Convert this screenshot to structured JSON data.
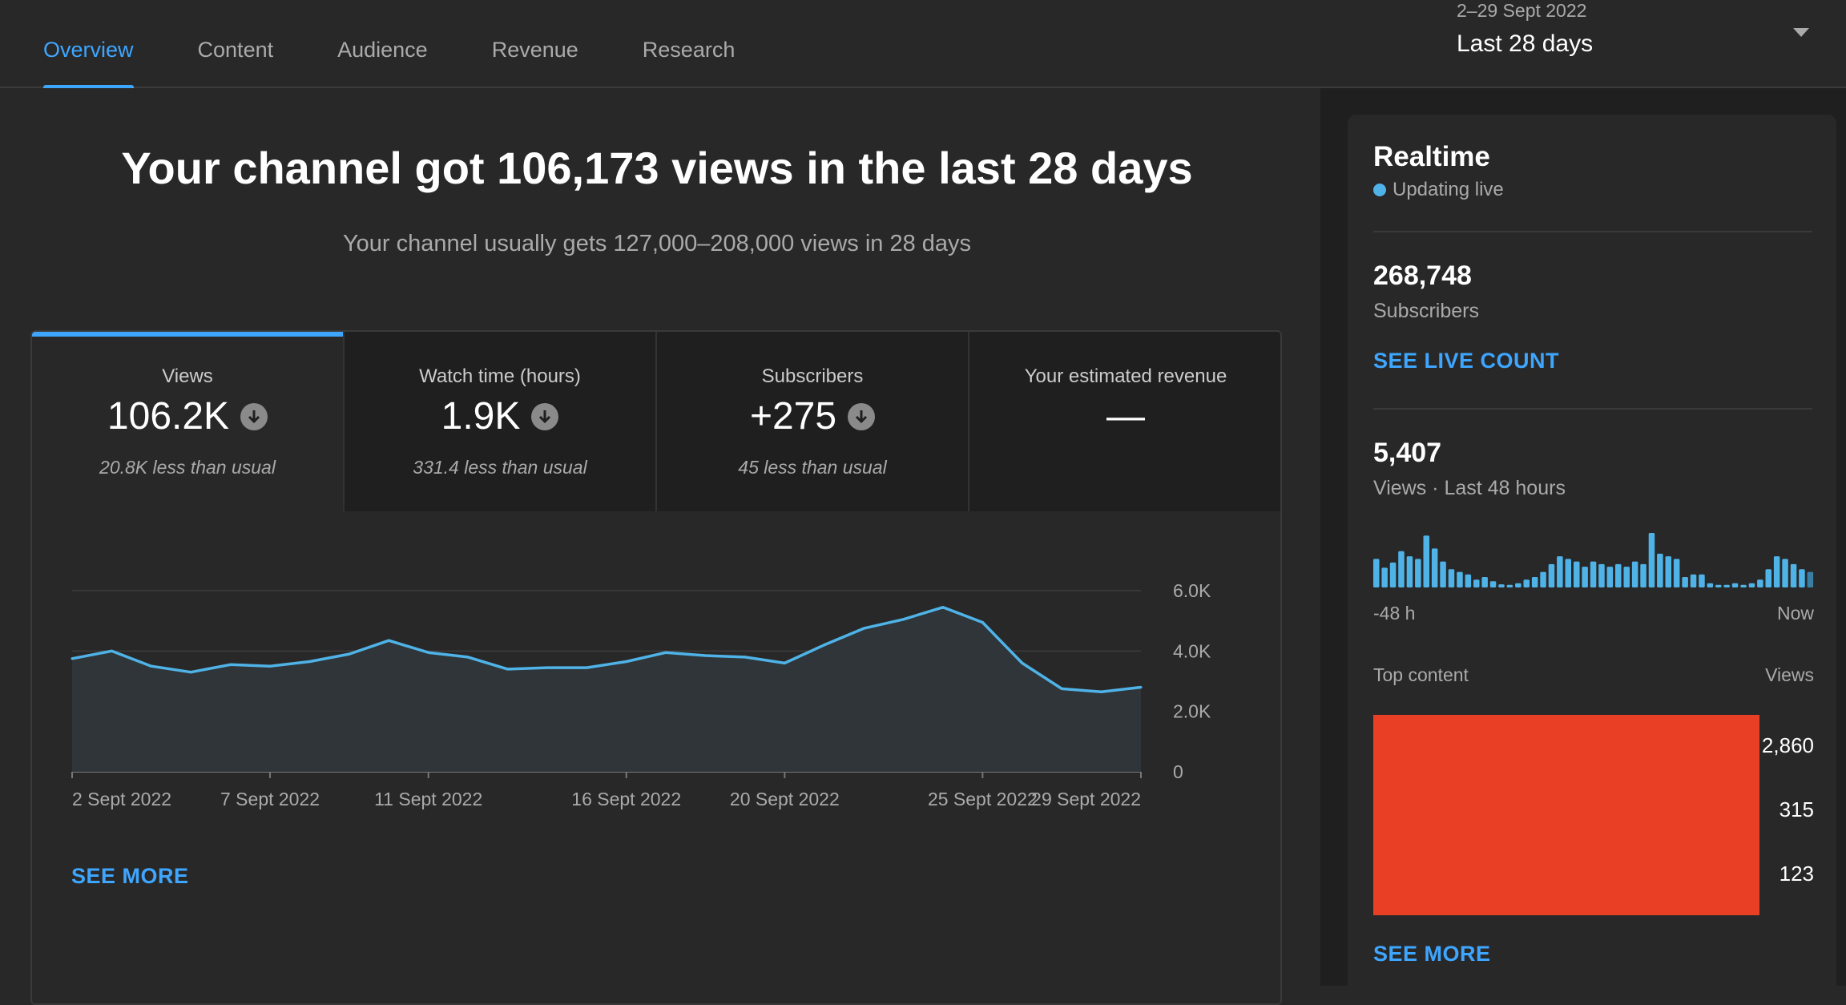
{
  "nav": {
    "tabs": [
      "Overview",
      "Content",
      "Audience",
      "Revenue",
      "Research"
    ],
    "active_tab": "Overview",
    "date_range": {
      "sub": "2–29 Sept 2022",
      "label": "Last 28 days"
    }
  },
  "summary": {
    "headline": "Your channel got 106,173 views in the last 28 days",
    "subline": "Your channel usually gets 127,000–208,000 views in 28 days"
  },
  "metrics": [
    {
      "label": "Views",
      "value": "106.2K",
      "note": "20.8K less than usual",
      "trend": "down",
      "active": true
    },
    {
      "label": "Watch time (hours)",
      "value": "1.9K",
      "note": "331.4 less than usual",
      "trend": "down",
      "active": false
    },
    {
      "label": "Subscribers",
      "value": "+275",
      "note": "45 less than usual",
      "trend": "down",
      "active": false
    },
    {
      "label": "Your estimated revenue",
      "value": "—",
      "note": "",
      "trend": "",
      "active": false
    }
  ],
  "see_more": "SEE MORE",
  "chart_data": {
    "type": "area",
    "x_tick_labels": [
      "2 Sept 2022",
      "7 Sept 2022",
      "11 Sept 2022",
      "16 Sept 2022",
      "20 Sept 2022",
      "25 Sept 2022",
      "29 Sept 2022"
    ],
    "x_tick_days": [
      2,
      7,
      11,
      16,
      20,
      25,
      29
    ],
    "y_tick_labels": [
      "0",
      "2.0K",
      "4.0K",
      "6.0K"
    ],
    "y_ticks": [
      0,
      2000,
      4000,
      6000
    ],
    "ylim": [
      0,
      6000
    ],
    "xlim": [
      2,
      29
    ],
    "line_color": "#4fb3e8",
    "series": [
      {
        "days": [
          2,
          3,
          4,
          5,
          6,
          7,
          8,
          9,
          10,
          11,
          12,
          13,
          14,
          15,
          16,
          17,
          18,
          19,
          20,
          21,
          22,
          23,
          24,
          25,
          26,
          27,
          28,
          29
        ],
        "values": [
          3750,
          4000,
          3500,
          3300,
          3550,
          3500,
          3650,
          3900,
          4350,
          3950,
          3800,
          3400,
          3450,
          3450,
          3650,
          3950,
          3850,
          3800,
          3600,
          4200,
          4750,
          5050,
          5450,
          4950,
          3600,
          2750,
          2650,
          2800
        ]
      }
    ]
  },
  "realtime": {
    "title": "Realtime",
    "live_label": "Updating live",
    "subscribers_value": "268,748",
    "subscribers_label": "Subscribers",
    "live_count_button": "SEE LIVE COUNT",
    "views_value": "5,407",
    "views_label": "Views · Last 48 hours",
    "axis_start": "-48 h",
    "axis_end": "Now",
    "bar_color": "#4fb3e8",
    "hourly_views": [
      55,
      38,
      48,
      70,
      60,
      55,
      100,
      75,
      50,
      35,
      30,
      25,
      15,
      20,
      12,
      6,
      5,
      8,
      15,
      20,
      30,
      45,
      60,
      55,
      50,
      40,
      50,
      45,
      40,
      45,
      40,
      50,
      45,
      105,
      65,
      60,
      55,
      20,
      25,
      25,
      8,
      5,
      5,
      8,
      5,
      8,
      15,
      35,
      60,
      55,
      45,
      35,
      30
    ],
    "top_content_label": "Top content",
    "top_content_views_label": "Views",
    "top_content_views": [
      "2,860",
      "315",
      "123"
    ]
  }
}
